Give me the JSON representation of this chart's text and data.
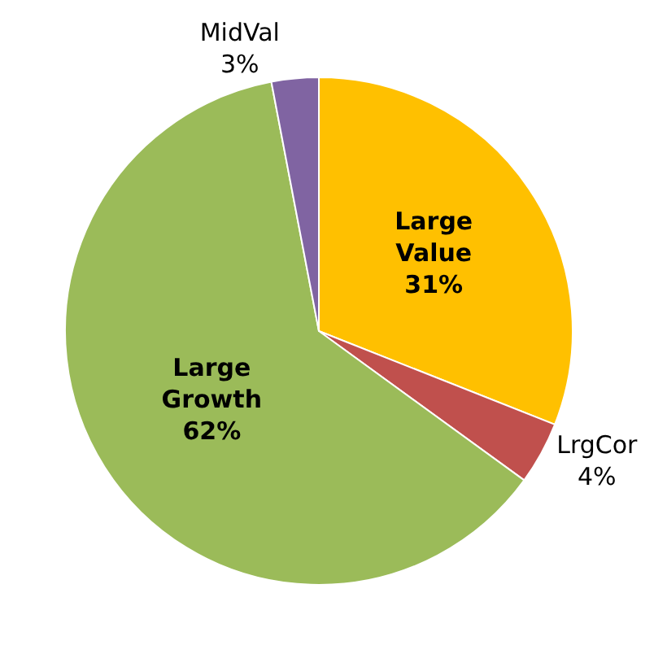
{
  "chart_data": {
    "type": "pie",
    "categories": [
      "Large Value",
      "LrgCor",
      "Large Growth",
      "MidVal"
    ],
    "values": [
      31,
      4,
      62,
      3
    ],
    "value_labels": [
      "31%",
      "4%",
      "62%",
      "3%"
    ],
    "colors": [
      "#ffc000",
      "#c0504d",
      "#9bbb59",
      "#8064a2"
    ],
    "legend": false
  }
}
